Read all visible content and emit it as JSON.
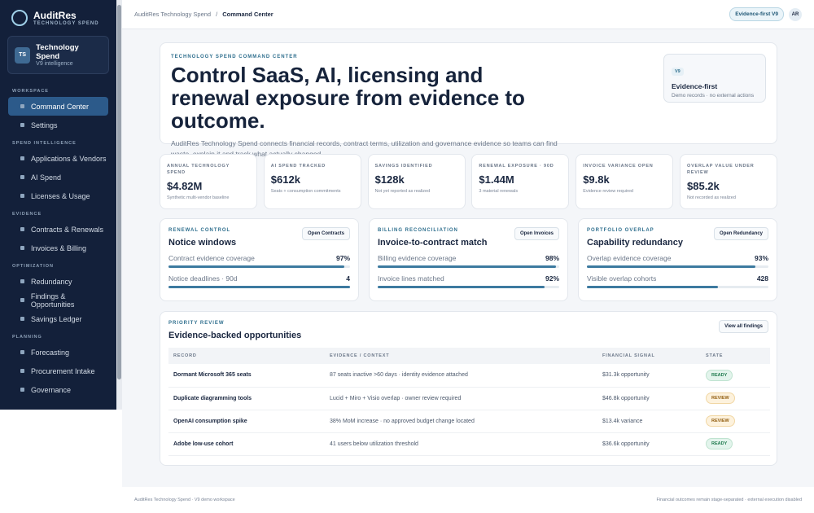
{
  "brand": {
    "name": "AuditRes",
    "tagline": "TECHNOLOGY SPEND"
  },
  "workspace": {
    "initials": "TS",
    "name": "Technology Spend",
    "sub": "V9 intelligence"
  },
  "nav": [
    {
      "section": "WORKSPACE",
      "items": [
        "Command Center",
        "Settings"
      ]
    },
    {
      "section": "SPEND INTELLIGENCE",
      "items": [
        "Applications & Vendors",
        "AI Spend",
        "Licenses & Usage"
      ]
    },
    {
      "section": "EVIDENCE",
      "items": [
        "Contracts & Renewals",
        "Invoices & Billing"
      ]
    },
    {
      "section": "OPTIMIZATION",
      "items": [
        "Redundancy",
        "Findings & Opportunities",
        "Savings Ledger"
      ]
    },
    {
      "section": "PLANNING",
      "items": [
        "Forecasting",
        "Procurement Intake",
        "Governance"
      ]
    }
  ],
  "topbar": {
    "breadcrumb": [
      "AuditRes Technology Spend",
      "Command Center"
    ],
    "separator": "/",
    "badge": "Evidence-first V9",
    "avatar": "AR"
  },
  "hero": {
    "eyebrow": "TECHNOLOGY SPEND COMMAND CENTER",
    "title": "Control SaaS, AI, licensing and renewal exposure from evidence to outcome.",
    "description": "AuditRes Technology Spend connects financial records, contract terms, utilization and governance evidence so teams can find waste, explain it and track what actually changed.",
    "aside": {
      "tag": "V9",
      "title": "Evidence-first",
      "note": "Demo records · no external actions"
    }
  },
  "kpis": [
    {
      "label": "ANNUAL TECHNOLOGY SPEND",
      "value": "$4.82M",
      "note": "Synthetic multi-vendor baseline"
    },
    {
      "label": "AI SPEND TRACKED",
      "value": "$612k",
      "note": "Seats + consumption commitments"
    },
    {
      "label": "SAVINGS IDENTIFIED",
      "value": "$128k",
      "note": "Not yet reported as realized"
    },
    {
      "label": "RENEWAL EXPOSURE · 90D",
      "value": "$1.44M",
      "note": "3 material renewals"
    },
    {
      "label": "INVOICE VARIANCE OPEN",
      "value": "$9.8k",
      "note": "Evidence review required"
    },
    {
      "label": "OVERLAP VALUE UNDER REVIEW",
      "value": "$85.2k",
      "note": "Not recorded as realized"
    }
  ],
  "panels": [
    {
      "eyebrow": "RENEWAL CONTROL",
      "title": "Notice windows",
      "button": "Open Contracts",
      "rows": [
        {
          "label": "Contract evidence coverage",
          "value": "97%",
          "fill": 97
        },
        {
          "label": "Notice deadlines · 90d",
          "value": "4",
          "fill": 100
        }
      ]
    },
    {
      "eyebrow": "BILLING RECONCILIATION",
      "title": "Invoice-to-contract match",
      "button": "Open Invoices",
      "rows": [
        {
          "label": "Billing evidence coverage",
          "value": "98%",
          "fill": 98
        },
        {
          "label": "Invoice lines matched",
          "value": "92%",
          "fill": 92
        }
      ]
    },
    {
      "eyebrow": "PORTFOLIO OVERLAP",
      "title": "Capability redundancy",
      "button": "Open Redundancy",
      "rows": [
        {
          "label": "Overlap evidence coverage",
          "value": "93%",
          "fill": 93
        },
        {
          "label": "Visible overlap cohorts",
          "value": "428",
          "fill": 72
        }
      ]
    }
  ],
  "table": {
    "eyebrow": "PRIORITY REVIEW",
    "title": "Evidence-backed opportunities",
    "button": "View all findings",
    "columns": [
      "RECORD",
      "EVIDENCE / CONTEXT",
      "FINANCIAL SIGNAL",
      "STATE"
    ],
    "rows": [
      [
        "Dormant Microsoft 365 seats",
        "87 seats inactive >60 days · identity evidence attached",
        "$31.3k opportunity",
        "READY"
      ],
      [
        "Duplicate diagramming tools",
        "Lucid + Miro + Visio overlap · owner review required",
        "$46.8k opportunity",
        "REVIEW"
      ],
      [
        "OpenAI consumption spike",
        "38% MoM increase · no approved budget change located",
        "$13.4k variance",
        "REVIEW"
      ],
      [
        "Adobe low-use cohort",
        "41 users below utilization threshold",
        "$36.6k opportunity",
        "READY"
      ]
    ]
  },
  "footer": {
    "left": "AuditRes Technology Spend · V9 demo workspace",
    "right": "Financial outcomes remain stage-separated · external execution disabled"
  }
}
